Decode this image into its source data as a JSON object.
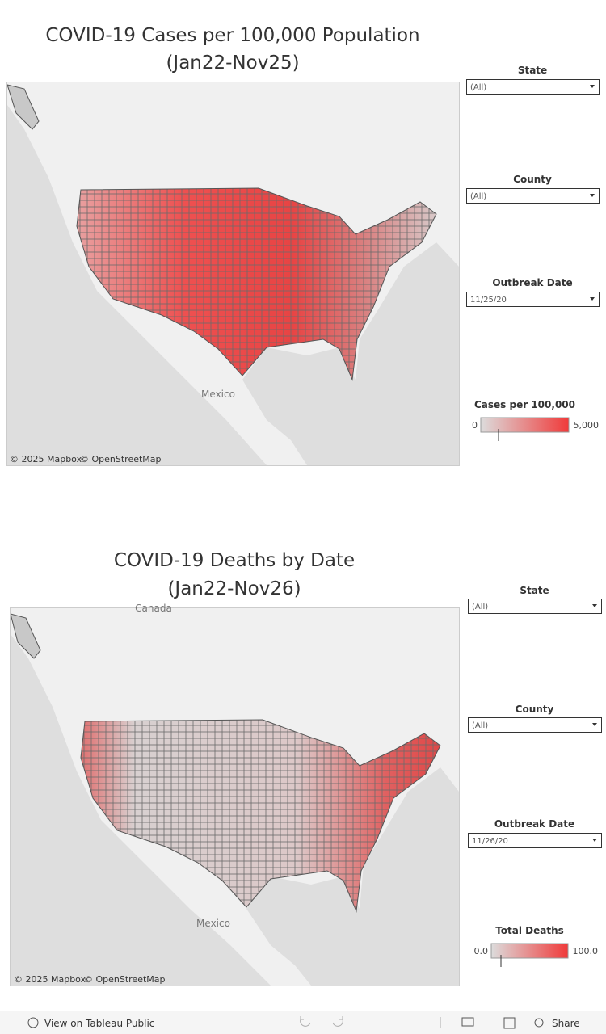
{
  "dashboards": [
    {
      "title_lines": [
        "COVID-19 Cases per 100,000 Population",
        "(Jan22-Nov25)"
      ],
      "map_labels": [
        "Mexico"
      ],
      "attribution": [
        "© 2025 Mapbox",
        "© OpenStreetMap"
      ],
      "filters": [
        {
          "label": "State",
          "value": "(All)"
        },
        {
          "label": "County",
          "value": "(All)"
        },
        {
          "label": "Outbreak Date",
          "value": "11/25/20"
        }
      ],
      "legend": {
        "title": "Cases per 100,000",
        "min_label": "0",
        "max_label": "5,000"
      }
    },
    {
      "title_lines": [
        "COVID-19 Deaths by Date",
        "(Jan22-Nov26)"
      ],
      "map_labels": [
        "Mexico",
        "Canada"
      ],
      "attribution": [
        "© 2025 Mapbox",
        "© OpenStreetMap"
      ],
      "filters": [
        {
          "label": "State",
          "value": "(All)"
        },
        {
          "label": "County",
          "value": "(All)"
        },
        {
          "label": "Outbreak Date",
          "value": "11/26/20"
        }
      ],
      "legend": {
        "title": "Total Deaths",
        "min_label": "0.0",
        "max_label": "100.0"
      }
    }
  ],
  "toolbar": {
    "view_link": "View on Tableau Public",
    "share": "Share"
  }
}
